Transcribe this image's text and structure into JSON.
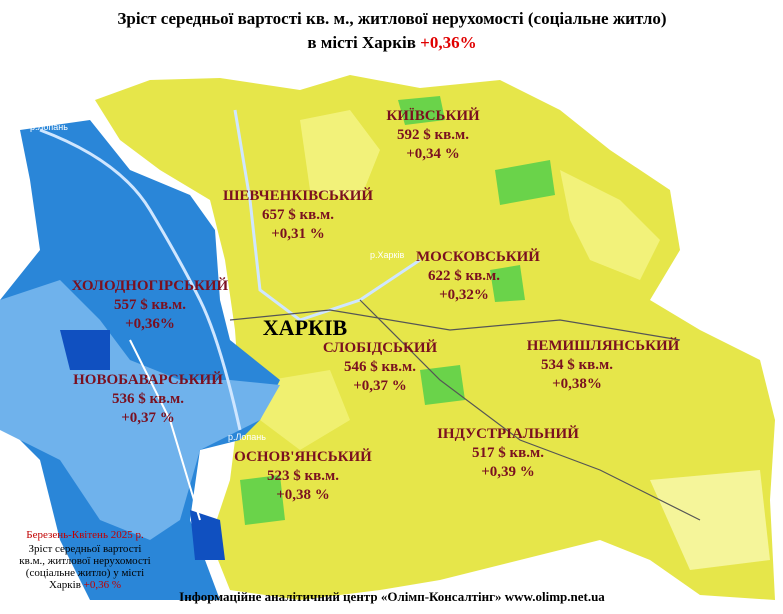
{
  "header": {
    "title": "Зріст середньої вартості кв. м., житлової нерухомості (соціальне житло)",
    "subtitle": "в місті Харків",
    "change": "+0,36%"
  },
  "rivers": [
    "р.Лопань",
    "р.Харків",
    "р.Лопань"
  ],
  "city": "ХАРКІВ",
  "districts": [
    {
      "name": "КИЇВСЬКИЙ",
      "price": "592 $ кв.м.",
      "change": "+0,34 %"
    },
    {
      "name": "ШЕВЧЕНКІВСЬКИЙ",
      "price": "657 $ кв.м.",
      "change": "+0,31 %"
    },
    {
      "name": "МОСКОВСЬКИЙ",
      "price": "622 $ кв.м.",
      "change": "+0,32%"
    },
    {
      "name": "ХОЛОДНОГІРСЬКИЙ",
      "price": "557 $ кв.м.",
      "change": "+0,36%"
    },
    {
      "name": "СЛОБІДСЬКИЙ",
      "price": "546 $ кв.м.",
      "change": "+0,37 %"
    },
    {
      "name": "НЕМИШЛЯНСЬКИЙ",
      "price": "534 $ кв.м.",
      "change": "+0,38%"
    },
    {
      "name": "НОВОБАВАРСЬКИЙ",
      "price": "536 $ кв.м.",
      "change": "+0,37 %"
    },
    {
      "name": "ОСНОВ'ЯНСЬКИЙ",
      "price": "523 $ кв.м.",
      "change": "+0,38 %"
    },
    {
      "name": "ІНДУСТРІАЛЬНИЙ",
      "price": "517 $ кв.м.",
      "change": "+0,39 %"
    }
  ],
  "note": {
    "date": "Березень-Квітень 2025 р.",
    "lines": [
      "Зріст середньої вартості",
      "кв.м., житлової нерухомості",
      "(соціальне житло)  у  місті",
      "Харків"
    ],
    "change": "+0,36 %"
  },
  "footer": {
    "source": "Інформаційне аналітичний центр «Олімп-Консалтінг» www.olimp.net.ua"
  }
}
